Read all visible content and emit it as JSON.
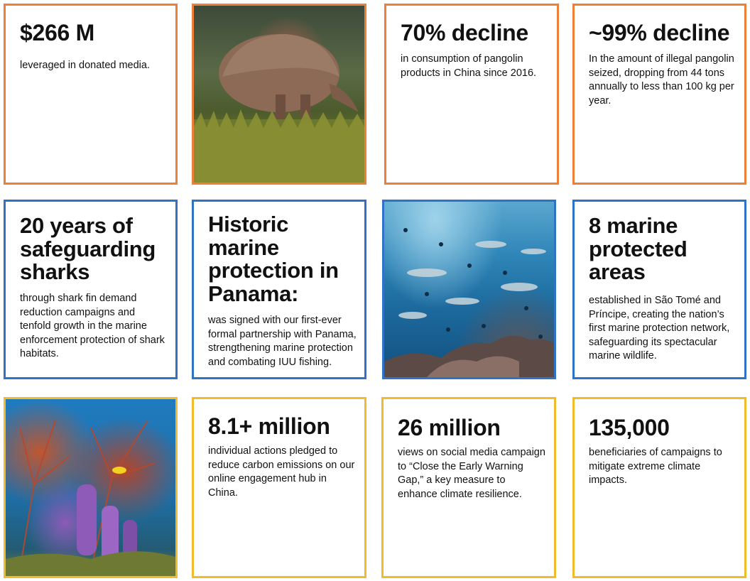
{
  "row1": {
    "card1": {
      "stat": "$266 M",
      "desc": "leveraged in donated media."
    },
    "card2": {
      "image": "pangolin-photo"
    },
    "card3": {
      "stat": "70% decline",
      "desc": "in consumption of pangolin products in China since 2016."
    },
    "card4": {
      "stat": "~99% decline",
      "desc": "In the amount of illegal pangolin seized, dropping from 44 tons annually to less than 100 kg per year."
    }
  },
  "row2": {
    "card1": {
      "stat": "20 years of safeguarding sharks",
      "desc": "through shark fin demand reduction campaigns and tenfold growth in the marine enforcement protection of shark habitats."
    },
    "card2": {
      "stat": "Historic marine protection in Panama:",
      "desc": "was signed with our first-ever formal partnership with Panama, strengthening marine protection and combating IUU fishing."
    },
    "card3": {
      "image": "hammerhead-sharks-photo"
    },
    "card4": {
      "stat": "8 marine protected areas",
      "desc": "established in São Tomé and Príncipe, creating the nation’s first marine protection network, safeguarding its spectacular marine wildlife."
    }
  },
  "row3": {
    "card1": {
      "image": "coral-reef-photo"
    },
    "card2": {
      "stat": "8.1+ million",
      "desc": "individual actions pledged to reduce carbon emissions on our online engagement hub in China."
    },
    "card3": {
      "stat": "26 million",
      "desc": "views on social media campaign to “Close the Early Warning Gap,” a key measure to enhance climate resilience."
    },
    "card4": {
      "stat": "135,000",
      "desc": "beneficiaries of campaigns to mitigate extreme climate impacts."
    }
  },
  "colors": {
    "orange": "#ee7f38",
    "blue": "#2f73c6",
    "yellow": "#f0bc2e"
  }
}
